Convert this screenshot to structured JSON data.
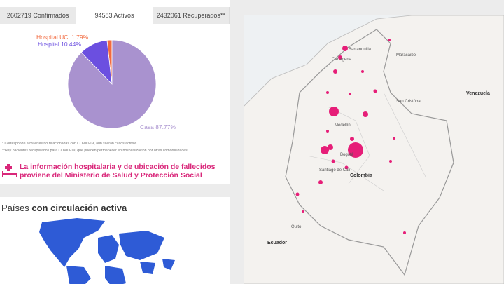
{
  "tabs": [
    "2602719 Confirmados",
    "94583 Activos",
    "2432061 Recuperados**"
  ],
  "chart_data": {
    "type": "pie",
    "categories": [
      "Hospital UCI",
      "Hospital",
      "Casa"
    ],
    "values": [
      1.79,
      10.44,
      87.77
    ],
    "value_labels": [
      "1.79%",
      "10.44%",
      "87.77%"
    ],
    "colors": [
      "#f26a3f",
      "#6b4fe0",
      "#a992cf"
    ]
  },
  "notes": [
    "* Corresponde a muertes no relacionadas con COVID-19, aún si eran casos activos",
    "**Hay pacientes recuperados para COVID-19, que pueden permanecer en hospitalización por otras comorbilidades"
  ],
  "info": [
    "La información hospitalaria y de ubicación de fallecidos",
    "proviene del Ministerio de Salud y Protección Social"
  ],
  "section": {
    "plain": "Países",
    "bold": "con circulación activa"
  },
  "map": {
    "labels": [
      "Barranquilla",
      "Cartagena",
      "Maracaibo",
      "Venezuela",
      "San Cristóbal",
      "Medellín",
      "Bogotá",
      "Santiago de Cali",
      "Colombia",
      "Ecuador",
      "Quito"
    ]
  }
}
